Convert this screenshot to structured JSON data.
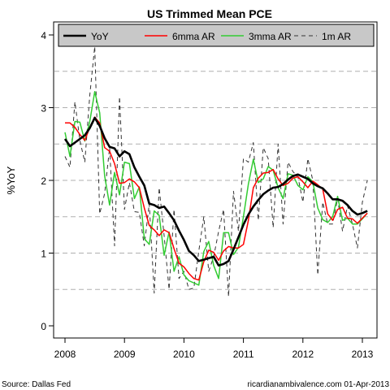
{
  "chart_data": {
    "type": "line",
    "title": "US Trimmed Mean PCE",
    "ylabel": "%YoY",
    "xlim": [
      2007.83,
      2013.27
    ],
    "ylim": [
      -0.1,
      4.15
    ],
    "x_ticks": [
      2008,
      2009,
      2010,
      2011,
      2012,
      2013
    ],
    "y_ticks": [
      0,
      1,
      2,
      3,
      4
    ],
    "dashed_gridlines_y": [
      0.5,
      1,
      1.5,
      2,
      2.5,
      3,
      3.5
    ],
    "legend_position": "top",
    "source": "Source: Dallas Fed",
    "credit": "ricardianambivalence.com   01-Apr-2013",
    "series": [
      {
        "name": "YoY",
        "color": "#000000",
        "style": "solid-thick",
        "x": [
          2008.0,
          2008.083,
          2008.167,
          2008.25,
          2008.333,
          2008.417,
          2008.5,
          2008.583,
          2008.667,
          2008.75,
          2008.833,
          2008.917,
          2009.0,
          2009.083,
          2009.167,
          2009.25,
          2009.333,
          2009.417,
          2009.5,
          2009.583,
          2009.667,
          2009.75,
          2009.833,
          2009.917,
          2010.0,
          2010.083,
          2010.167,
          2010.25,
          2010.333,
          2010.417,
          2010.5,
          2010.583,
          2010.667,
          2010.75,
          2010.833,
          2010.917,
          2011.0,
          2011.083,
          2011.167,
          2011.25,
          2011.333,
          2011.417,
          2011.5,
          2011.583,
          2011.667,
          2011.75,
          2011.833,
          2011.917,
          2012.0,
          2012.083,
          2012.167,
          2012.25,
          2012.333,
          2012.417,
          2012.5,
          2012.583,
          2012.667,
          2012.75,
          2012.833,
          2012.917,
          2013.0,
          2013.083
        ],
        "values": [
          2.57,
          2.47,
          2.52,
          2.57,
          2.62,
          2.72,
          2.86,
          2.75,
          2.58,
          2.46,
          2.44,
          2.33,
          2.4,
          2.36,
          2.18,
          2.05,
          1.93,
          1.68,
          1.66,
          1.62,
          1.64,
          1.55,
          1.45,
          1.31,
          1.18,
          1.03,
          0.97,
          0.89,
          0.91,
          0.93,
          0.95,
          0.83,
          0.85,
          0.89,
          1.05,
          1.22,
          1.39,
          1.53,
          1.64,
          1.73,
          1.81,
          1.86,
          1.9,
          1.91,
          1.95,
          2.01,
          2.06,
          2.08,
          2.05,
          2.02,
          1.96,
          1.92,
          1.89,
          1.82,
          1.74,
          1.74,
          1.72,
          1.66,
          1.58,
          1.53,
          1.55,
          1.58
        ]
      },
      {
        "name": "6mma AR",
        "color": "#ff0000",
        "style": "solid",
        "x": [
          2008.0,
          2008.083,
          2008.167,
          2008.25,
          2008.333,
          2008.417,
          2008.5,
          2008.583,
          2008.667,
          2008.75,
          2008.833,
          2008.917,
          2009.0,
          2009.083,
          2009.167,
          2009.25,
          2009.333,
          2009.417,
          2009.5,
          2009.583,
          2009.667,
          2009.75,
          2009.833,
          2009.917,
          2010.0,
          2010.083,
          2010.167,
          2010.25,
          2010.333,
          2010.417,
          2010.5,
          2010.583,
          2010.667,
          2010.75,
          2010.833,
          2010.917,
          2011.0,
          2011.083,
          2011.167,
          2011.25,
          2011.333,
          2011.417,
          2011.5,
          2011.583,
          2011.667,
          2011.75,
          2011.833,
          2011.917,
          2012.0,
          2012.083,
          2012.167,
          2012.25,
          2012.333,
          2012.417,
          2012.5,
          2012.583,
          2012.667,
          2012.75,
          2012.833,
          2012.917,
          2013.0,
          2013.083
        ],
        "values": [
          2.79,
          2.79,
          2.73,
          2.63,
          2.55,
          2.73,
          2.87,
          2.79,
          2.45,
          2.4,
          2.23,
          1.96,
          1.97,
          2.02,
          1.98,
          1.9,
          1.62,
          1.38,
          1.32,
          1.24,
          1.32,
          1.28,
          1.06,
          0.86,
          0.81,
          0.72,
          0.65,
          0.63,
          0.88,
          1.04,
          1.01,
          0.9,
          1.03,
          1.09,
          1.07,
          1.07,
          1.12,
          1.45,
          1.9,
          2.03,
          2.1,
          2.11,
          2.15,
          2.02,
          1.93,
          1.96,
          2.03,
          2.05,
          1.98,
          1.9,
          1.99,
          1.94,
          1.88,
          1.54,
          1.45,
          1.6,
          1.63,
          1.48,
          1.47,
          1.41,
          1.48,
          1.55
        ]
      },
      {
        "name": "3mma AR",
        "color": "#33cc33",
        "style": "solid",
        "x": [
          2008.0,
          2008.083,
          2008.167,
          2008.25,
          2008.333,
          2008.417,
          2008.5,
          2008.583,
          2008.667,
          2008.75,
          2008.833,
          2008.917,
          2009.0,
          2009.083,
          2009.167,
          2009.25,
          2009.333,
          2009.417,
          2009.5,
          2009.583,
          2009.667,
          2009.75,
          2009.833,
          2009.917,
          2010.0,
          2010.083,
          2010.167,
          2010.25,
          2010.333,
          2010.417,
          2010.5,
          2010.583,
          2010.667,
          2010.75,
          2010.833,
          2010.917,
          2011.0,
          2011.083,
          2011.167,
          2011.25,
          2011.333,
          2011.417,
          2011.5,
          2011.583,
          2011.667,
          2011.75,
          2011.833,
          2011.917,
          2012.0,
          2012.083,
          2012.167,
          2012.25,
          2012.333,
          2012.417,
          2012.5,
          2012.583,
          2012.667,
          2012.75,
          2012.833,
          2012.917,
          2013.0,
          2013.083
        ],
        "values": [
          2.66,
          2.33,
          2.81,
          2.8,
          2.54,
          2.81,
          3.22,
          2.93,
          2.06,
          1.66,
          2.11,
          1.8,
          2.25,
          2.23,
          1.75,
          1.91,
          1.2,
          1.12,
          1.58,
          1.52,
          0.97,
          1.29,
          0.75,
          0.95,
          0.7,
          0.62,
          0.59,
          0.56,
          1.02,
          1.16,
          0.83,
          0.65,
          1.28,
          1.28,
          0.98,
          1.08,
          1.5,
          1.95,
          2.29,
          1.97,
          2.02,
          2.19,
          2.14,
          1.9,
          1.75,
          2.09,
          2.07,
          1.93,
          1.87,
          2.05,
          1.98,
          1.62,
          1.46,
          1.42,
          1.5,
          1.78,
          1.45,
          1.48,
          1.4,
          1.4,
          1.47,
          1.55
        ]
      },
      {
        "name": "1m AR",
        "color": "#333333",
        "style": "dashed",
        "x": [
          2008.0,
          2008.083,
          2008.167,
          2008.25,
          2008.333,
          2008.417,
          2008.5,
          2008.583,
          2008.667,
          2008.75,
          2008.833,
          2008.917,
          2009.0,
          2009.083,
          2009.167,
          2009.25,
          2009.333,
          2009.417,
          2009.5,
          2009.583,
          2009.667,
          2009.75,
          2009.833,
          2009.917,
          2010.0,
          2010.083,
          2010.167,
          2010.25,
          2010.333,
          2010.417,
          2010.5,
          2010.583,
          2010.667,
          2010.75,
          2010.833,
          2010.917,
          2011.0,
          2011.083,
          2011.167,
          2011.25,
          2011.333,
          2011.417,
          2011.5,
          2011.583,
          2011.667,
          2011.75,
          2011.833,
          2011.917,
          2012.0,
          2012.083,
          2012.167,
          2012.25,
          2012.333,
          2012.417,
          2012.5,
          2012.583,
          2012.667,
          2012.75,
          2012.833,
          2012.917,
          2013.0,
          2013.083
        ],
        "values": [
          2.33,
          2.18,
          3.08,
          2.55,
          2.25,
          3.17,
          3.84,
          1.54,
          1.82,
          2.45,
          1.1,
          3.15,
          1.6,
          1.97,
          1.57,
          1.56,
          1.1,
          1.68,
          0.45,
          1.9,
          1.24,
          0.5,
          1.6,
          0.65,
          0.75,
          0.5,
          0.52,
          1.03,
          1.5,
          0.75,
          0.95,
          1.3,
          1.6,
          0.4,
          1.85,
          1.3,
          2.3,
          2.25,
          2.52,
          1.45,
          2.45,
          2.3,
          1.35,
          2.5,
          1.4,
          2.25,
          2.12,
          2.05,
          1.7,
          2.3,
          2.0,
          0.7,
          1.7,
          1.4,
          1.4,
          1.75,
          1.3,
          1.65,
          1.4,
          1.07,
          1.7,
          2.0
        ]
      }
    ]
  }
}
